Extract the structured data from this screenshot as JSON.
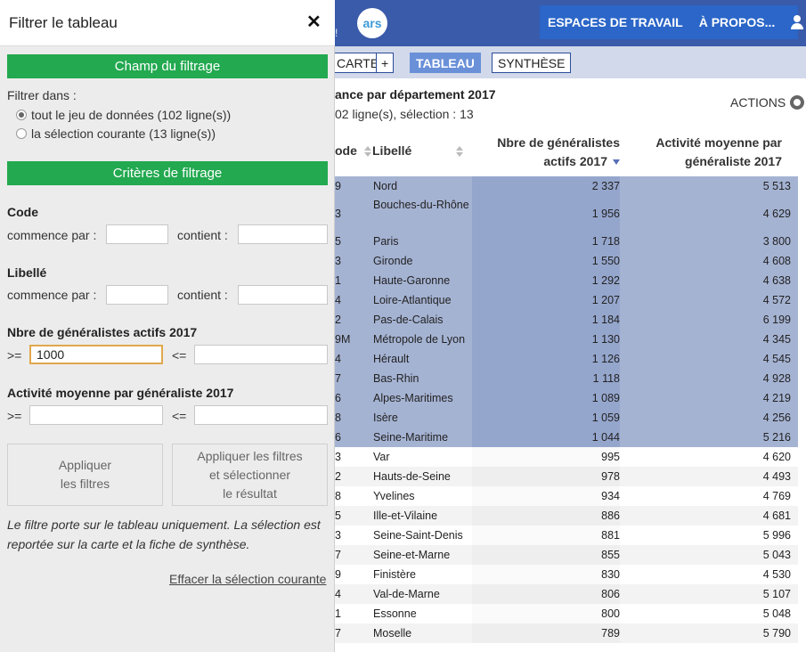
{
  "header": {
    "logo_text": "ars",
    "logo_suffix": "!",
    "nav": [
      "ESPACES DE TRAVAIL",
      "À PROPOS..."
    ]
  },
  "tabs": [
    "CARTE",
    "+",
    "TABLEAU",
    "SYNTHÈSE"
  ],
  "info": {
    "title": "ance par département 2017",
    "subtitle": "02 ligne(s), sélection : 13",
    "actions_label": "ACTIONS"
  },
  "columns": {
    "code": "ode",
    "libelle": "Libellé",
    "generalistes_line1": "Nbre de généralistes",
    "generalistes_line2": "actifs 2017",
    "activite_line1": "Activité moyenne par",
    "activite_line2": "généraliste 2017"
  },
  "rows": [
    {
      "code": "9",
      "libelle": "Nord",
      "nbre": "2 337",
      "activite": "5 513",
      "selected": true
    },
    {
      "code": "3",
      "libelle": "Bouches-du-Rhône",
      "nbre": "1 956",
      "activite": "4 629",
      "selected": true
    },
    {
      "code": "5",
      "libelle": "Paris",
      "nbre": "1 718",
      "activite": "3 800",
      "selected": true
    },
    {
      "code": "3",
      "libelle": "Gironde",
      "nbre": "1 550",
      "activite": "4 608",
      "selected": true
    },
    {
      "code": "1",
      "libelle": "Haute-Garonne",
      "nbre": "1 292",
      "activite": "4 638",
      "selected": true
    },
    {
      "code": "4",
      "libelle": "Loire-Atlantique",
      "nbre": "1 207",
      "activite": "4 572",
      "selected": true
    },
    {
      "code": "2",
      "libelle": "Pas-de-Calais",
      "nbre": "1 184",
      "activite": "6 199",
      "selected": true
    },
    {
      "code": "9M",
      "libelle": "Métropole de Lyon",
      "nbre": "1 130",
      "activite": "4 345",
      "selected": true
    },
    {
      "code": "4",
      "libelle": "Hérault",
      "nbre": "1 126",
      "activite": "4 545",
      "selected": true
    },
    {
      "code": "7",
      "libelle": "Bas-Rhin",
      "nbre": "1 118",
      "activite": "4 928",
      "selected": true
    },
    {
      "code": "6",
      "libelle": "Alpes-Maritimes",
      "nbre": "1 089",
      "activite": "4 219",
      "selected": true
    },
    {
      "code": "8",
      "libelle": "Isère",
      "nbre": "1 059",
      "activite": "4 256",
      "selected": true
    },
    {
      "code": "6",
      "libelle": "Seine-Maritime",
      "nbre": "1 044",
      "activite": "5 216",
      "selected": true
    },
    {
      "code": "3",
      "libelle": "Var",
      "nbre": "995",
      "activite": "4 620",
      "selected": false
    },
    {
      "code": "2",
      "libelle": "Hauts-de-Seine",
      "nbre": "978",
      "activite": "4 493",
      "selected": false
    },
    {
      "code": "8",
      "libelle": "Yvelines",
      "nbre": "934",
      "activite": "4 769",
      "selected": false
    },
    {
      "code": "5",
      "libelle": "Ille-et-Vilaine",
      "nbre": "886",
      "activite": "4 681",
      "selected": false
    },
    {
      "code": "3",
      "libelle": "Seine-Saint-Denis",
      "nbre": "881",
      "activite": "5 996",
      "selected": false
    },
    {
      "code": "7",
      "libelle": "Seine-et-Marne",
      "nbre": "855",
      "activite": "5 043",
      "selected": false
    },
    {
      "code": "9",
      "libelle": "Finistère",
      "nbre": "830",
      "activite": "4 530",
      "selected": false
    },
    {
      "code": "4",
      "libelle": "Val-de-Marne",
      "nbre": "806",
      "activite": "5 107",
      "selected": false
    },
    {
      "code": "1",
      "libelle": "Essonne",
      "nbre": "800",
      "activite": "5 048",
      "selected": false
    },
    {
      "code": "7",
      "libelle": "Moselle",
      "nbre": "789",
      "activite": "5 790",
      "selected": false
    }
  ],
  "panel": {
    "title": "Filtrer le tableau",
    "close_label": "✕",
    "section_field": "Champ du filtrage",
    "filter_in_label": "Filtrer dans :",
    "radio_all": "tout le jeu de données (102 ligne(s))",
    "radio_selection": "la sélection courante (13 ligne(s))",
    "section_criteria": "Critères de filtrage",
    "code": {
      "label": "Code",
      "starts_label": "commence par :",
      "contains_label": "contient :",
      "starts_value": "",
      "contains_value": ""
    },
    "libelle": {
      "label": "Libellé",
      "starts_label": "commence par :",
      "contains_label": "contient :",
      "starts_value": "",
      "contains_value": ""
    },
    "generalistes": {
      "label": "Nbre de généralistes actifs 2017",
      "gte_label": ">=",
      "lte_label": "<=",
      "gte_value": "1000",
      "lte_value": ""
    },
    "activite": {
      "label": "Activité moyenne par généraliste 2017",
      "gte_label": ">=",
      "lte_label": "<=",
      "gte_value": "",
      "lte_value": ""
    },
    "apply_button": "Appliquer\nles filtres",
    "apply_select_button": "Appliquer les filtres\net sélectionner\nle résultat",
    "note": "Le filtre porte sur le tableau uniquement. La sélection est reportée sur la carte et la fiche de synthèse.",
    "clear_link": "Effacer la sélection courante"
  },
  "colors": {
    "topbar": "#3a5aaa",
    "nav_box": "#2b66c8",
    "section_green": "#23a950",
    "selected_row": "#a5b3d3",
    "active_tab": "#6a90d8"
  }
}
